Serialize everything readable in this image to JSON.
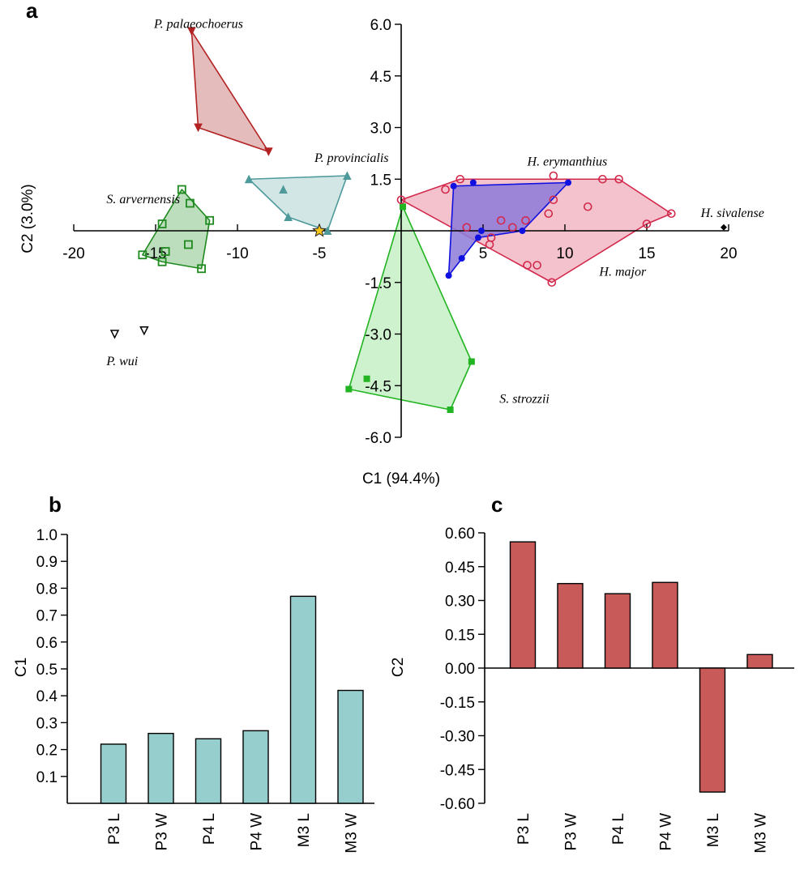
{
  "panels": {
    "a": "a",
    "b": "b",
    "c": "c"
  },
  "chart_data": [
    {
      "type": "scatter",
      "xlabel": "C1 (94.4%)",
      "ylabel": "C2 (3.0%)",
      "xlim": [
        -20,
        20
      ],
      "ylim": [
        -6.0,
        6.0
      ],
      "x_ticks": [
        {
          "v": -20,
          "t": "-20"
        },
        {
          "v": -15,
          "t": "-15"
        },
        {
          "v": -10,
          "t": "-10"
        },
        {
          "v": -5,
          "t": "-5"
        },
        {
          "v": 5,
          "t": "5"
        },
        {
          "v": 10,
          "t": "10"
        },
        {
          "v": 15,
          "t": "15"
        },
        {
          "v": 20,
          "t": "20"
        }
      ],
      "y_ticks": [
        {
          "v": 6,
          "t": "6.0"
        },
        {
          "v": 4.5,
          "t": "4.5"
        },
        {
          "v": 3,
          "t": "3.0"
        },
        {
          "v": 1.5,
          "t": "1.5"
        },
        {
          "v": -1.5,
          "t": "-1.5"
        },
        {
          "v": -3,
          "t": "-3.0"
        },
        {
          "v": -4.5,
          "t": "-4.5"
        },
        {
          "v": -6,
          "t": "-6.0"
        }
      ],
      "groups": [
        {
          "name": "P. palaeochoerus",
          "color": "#b22222",
          "fill": "#d9a0a0",
          "marker": "triangle-down-filled",
          "points": [
            [
              -12.8,
              5.8
            ],
            [
              -12.4,
              3.0
            ],
            [
              -8.1,
              2.3
            ]
          ],
          "hull": [
            [
              -12.8,
              5.8
            ],
            [
              -12.4,
              3.0
            ],
            [
              -8.1,
              2.3
            ]
          ]
        },
        {
          "name": "P. provincialis",
          "color": "#4e9a9a",
          "fill": "#bfdcdc",
          "marker": "triangle-up-filled",
          "points": [
            [
              -9.3,
              1.5
            ],
            [
              -7.2,
              1.2
            ],
            [
              -6.9,
              0.4
            ],
            [
              -4.5,
              0.0
            ],
            [
              -3.3,
              1.6
            ]
          ],
          "hull": [
            [
              -9.3,
              1.5
            ],
            [
              -3.3,
              1.6
            ],
            [
              -4.5,
              0.0
            ],
            [
              -6.9,
              0.4
            ]
          ]
        },
        {
          "name": "S. arvernensis",
          "color": "#1f8a1f",
          "fill": "#9fd09f",
          "marker": "square-open",
          "points": [
            [
              -15.8,
              -0.7
            ],
            [
              -14.6,
              -0.9
            ],
            [
              -14.4,
              -0.6
            ],
            [
              -13.4,
              1.2
            ],
            [
              -12.9,
              0.8
            ],
            [
              -13.0,
              -0.4
            ],
            [
              -14.6,
              0.2
            ],
            [
              -12.2,
              -1.1
            ],
            [
              -11.7,
              0.3
            ]
          ],
          "hull": [
            [
              -15.8,
              -0.7
            ],
            [
              -14.6,
              -0.9
            ],
            [
              -12.2,
              -1.1
            ],
            [
              -11.7,
              0.3
            ],
            [
              -13.4,
              1.2
            ]
          ]
        },
        {
          "name": "P. wui",
          "color": "#000000",
          "fill": "none",
          "marker": "triangle-down-open",
          "points": [
            [
              -17.5,
              -3.0
            ],
            [
              -15.7,
              -2.9
            ]
          ],
          "hull": []
        },
        {
          "name": "S. strozzii",
          "color": "#22b422",
          "fill": "#b8ecb8",
          "marker": "square-filled",
          "points": [
            [
              0.1,
              0.7
            ],
            [
              -3.2,
              -4.6
            ],
            [
              -2.1,
              -4.3
            ],
            [
              3.0,
              -5.2
            ],
            [
              4.3,
              -3.8
            ]
          ],
          "hull": [
            [
              0.1,
              0.7
            ],
            [
              4.3,
              -3.8
            ],
            [
              3.0,
              -5.2
            ],
            [
              -3.2,
              -4.6
            ]
          ]
        },
        {
          "name": "H. major",
          "color": "#d2284b",
          "fill": "#f0a8b8",
          "marker": "circle-open",
          "points": [
            [
              0.0,
              0.9
            ],
            [
              2.7,
              1.2
            ],
            [
              3.6,
              1.5
            ],
            [
              4.0,
              0.1
            ],
            [
              5.4,
              -0.4
            ],
            [
              5.5,
              -0.2
            ],
            [
              6.8,
              0.1
            ],
            [
              7.6,
              0.3
            ],
            [
              7.7,
              -1.0
            ],
            [
              8.3,
              -1.0
            ],
            [
              9.0,
              0.5
            ],
            [
              9.3,
              0.9
            ],
            [
              9.2,
              -1.5
            ],
            [
              11.4,
              0.7
            ],
            [
              12.3,
              1.5
            ],
            [
              13.3,
              1.5
            ],
            [
              15.0,
              0.2
            ],
            [
              16.5,
              0.5
            ],
            [
              9.3,
              1.6
            ],
            [
              6.1,
              0.3
            ]
          ],
          "hull": [
            [
              0.0,
              0.9
            ],
            [
              3.6,
              1.5
            ],
            [
              13.3,
              1.5
            ],
            [
              16.5,
              0.5
            ],
            [
              15.0,
              0.2
            ],
            [
              9.2,
              -1.5
            ]
          ]
        },
        {
          "name": "H. erymanthius",
          "color": "#1010e0",
          "fill": "#8c7ad8",
          "marker": "circle-filled",
          "points": [
            [
              3.2,
              1.3
            ],
            [
              4.4,
              1.4
            ],
            [
              10.2,
              1.4
            ],
            [
              2.9,
              -1.3
            ],
            [
              3.7,
              -0.8
            ],
            [
              4.7,
              -0.2
            ],
            [
              4.9,
              0.0
            ],
            [
              7.4,
              0.0
            ]
          ],
          "hull": [
            [
              3.2,
              1.3
            ],
            [
              10.2,
              1.4
            ],
            [
              7.4,
              0.0
            ],
            [
              4.7,
              -0.2
            ],
            [
              2.9,
              -1.3
            ]
          ]
        },
        {
          "name": "H. sivalense",
          "color": "#000000",
          "fill": "none",
          "marker": "diamond-filled",
          "points": [
            [
              19.7,
              0.1
            ]
          ],
          "hull": []
        }
      ],
      "star": {
        "x": -5.0,
        "y": 0.0,
        "color": "#f5c518"
      },
      "labels": [
        {
          "text": "P. palaeochoerus",
          "x": -15.1,
          "y": 5.9
        },
        {
          "text": "P. provincialis",
          "x": -5.3,
          "y": 2.0
        },
        {
          "text": "S. arvernensis",
          "x": -18.0,
          "y": 0.8
        },
        {
          "text": "P. wui",
          "x": -18.0,
          "y": -3.9
        },
        {
          "text": "S. strozzii",
          "x": 6.0,
          "y": -5.0
        },
        {
          "text": "H. erymanthius",
          "x": 7.7,
          "y": 1.9
        },
        {
          "text": "H. major",
          "x": 12.1,
          "y": -1.3
        },
        {
          "text": "H. sivalense",
          "x": 18.3,
          "y": 0.4
        }
      ]
    },
    {
      "type": "bar",
      "ylabel": "C1",
      "categories": [
        "P3 L",
        "P3 W",
        "P4 L",
        "P4 W",
        "M3 L",
        "M3 W"
      ],
      "values": [
        0.22,
        0.26,
        0.24,
        0.27,
        0.77,
        0.42
      ],
      "ylim": [
        0.0,
        1.0
      ],
      "y_ticks": [
        {
          "v": 0.1,
          "t": "0.1"
        },
        {
          "v": 0.2,
          "t": "0.2"
        },
        {
          "v": 0.3,
          "t": "0.3"
        },
        {
          "v": 0.4,
          "t": "0.4"
        },
        {
          "v": 0.5,
          "t": "0.5"
        },
        {
          "v": 0.6,
          "t": "0.6"
        },
        {
          "v": 0.7,
          "t": "0.7"
        },
        {
          "v": 0.8,
          "t": "0.8"
        },
        {
          "v": 0.9,
          "t": "0.9"
        },
        {
          "v": 1.0,
          "t": "1.0"
        }
      ],
      "color": "#96cdcd"
    },
    {
      "type": "bar",
      "ylabel": "C2",
      "categories": [
        "P3 L",
        "P3 W",
        "P4 L",
        "P4 W",
        "M3 L",
        "M3 W"
      ],
      "values": [
        0.56,
        0.375,
        0.33,
        0.38,
        -0.55,
        0.06
      ],
      "ylim": [
        -0.6,
        0.6
      ],
      "y_ticks": [
        {
          "v": 0.6,
          "t": "0.60"
        },
        {
          "v": 0.45,
          "t": "0.45"
        },
        {
          "v": 0.3,
          "t": "0.30"
        },
        {
          "v": 0.15,
          "t": "0.15"
        },
        {
          "v": 0.0,
          "t": "0.00"
        },
        {
          "v": -0.15,
          "t": "-0.15"
        },
        {
          "v": -0.3,
          "t": "-0.30"
        },
        {
          "v": -0.45,
          "t": "-0.45"
        },
        {
          "v": -0.6,
          "t": "-0.60"
        }
      ],
      "color": "#c85a5a"
    }
  ]
}
